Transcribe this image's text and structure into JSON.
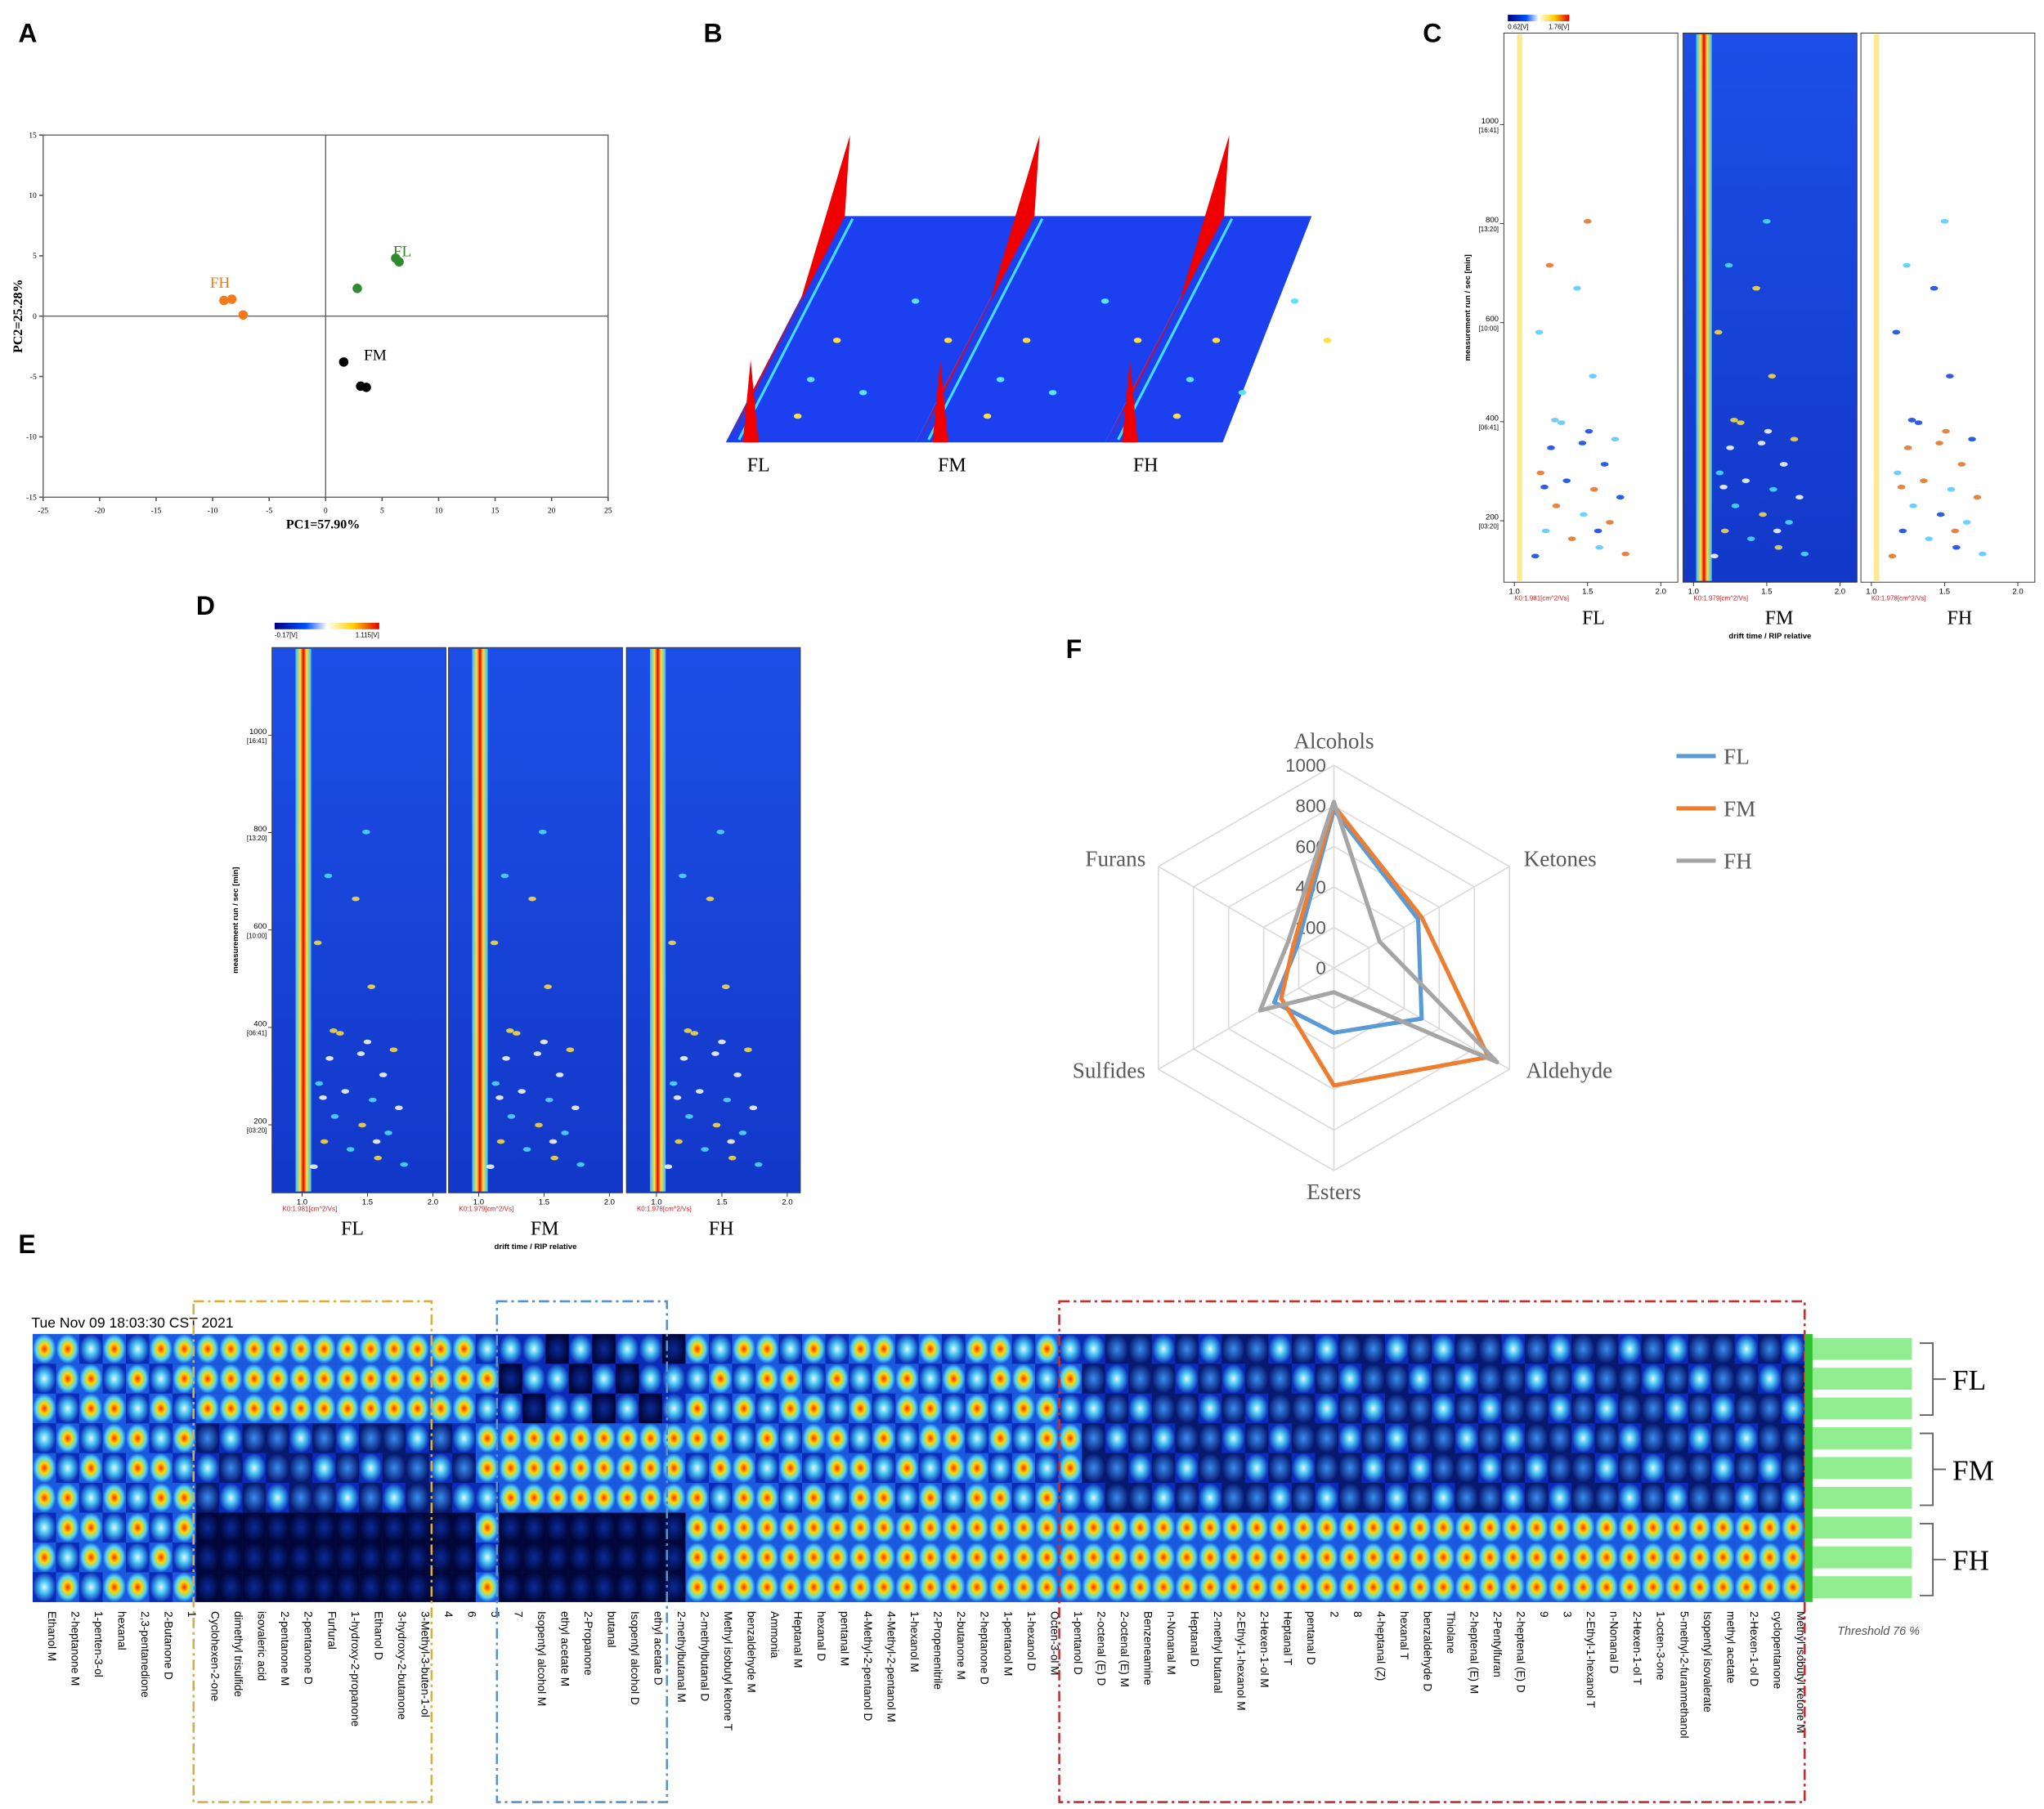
{
  "panel_labels": [
    "A",
    "B",
    "C",
    "D",
    "E",
    "F"
  ],
  "chart_data": [
    {
      "type": "scatter",
      "x_label": "PC1=57.90%",
      "y_label": "PC2=25.28%",
      "xlim": [
        -25,
        25
      ],
      "xticks": [
        -25,
        -20,
        -15,
        -10,
        -5,
        0,
        5,
        10,
        15,
        20,
        25
      ],
      "ylim": [
        -15,
        15
      ],
      "yticks": [
        -15,
        -10,
        -5,
        0,
        5,
        10,
        15
      ],
      "series": [
        {
          "name": "FH",
          "color": "#f07a1c",
          "x": [
            -9.0,
            -8.3,
            -7.3
          ],
          "values": [
            1.3,
            1.4,
            0.1
          ]
        },
        {
          "name": "FL",
          "color": "#2e8b2e",
          "x": [
            2.8,
            6.2,
            6.5
          ],
          "values": [
            2.3,
            4.8,
            4.5
          ]
        },
        {
          "name": "FM",
          "color": "#000000",
          "x": [
            1.6,
            3.1,
            3.6
          ],
          "values": [
            -3.8,
            -5.8,
            -5.9
          ]
        }
      ]
    },
    {
      "type": "radar",
      "categories": [
        "Alcohols",
        "Ketones",
        "Aldehyde",
        "Esters",
        "Sulfides",
        "Furans"
      ],
      "rlim": [
        0,
        1000
      ],
      "rticks": [
        0,
        200,
        400,
        600,
        800,
        1000
      ],
      "legend": "right",
      "series": [
        {
          "name": "FL",
          "color": "#5b9bd5",
          "values": [
            780,
            480,
            500,
            320,
            340,
            210
          ]
        },
        {
          "name": "FM",
          "color": "#ed7d31",
          "values": [
            800,
            500,
            880,
            580,
            300,
            230
          ]
        },
        {
          "name": "FH",
          "color": "#a5a5a5",
          "values": [
            820,
            260,
            930,
            120,
            420,
            260
          ]
        }
      ]
    }
  ],
  "panel_b": {
    "sample_labels": [
      "FL",
      "FM",
      "FH"
    ]
  },
  "panel_c": {
    "colorbar_labels": [
      "0.62[V]",
      "1.76[V]"
    ],
    "y_axis_label": "measurement run / sec [min]",
    "yticks": [
      200,
      400,
      600,
      800,
      1000
    ],
    "ytick_times": [
      "[03:20]",
      "[06:41]",
      "[10:00]",
      "[13:20]",
      "[16:41]"
    ],
    "xticks": [
      {
        "value": 1,
        "label": "1.0"
      },
      {
        "value": 1.5,
        "label": "1.5"
      },
      {
        "value": 2,
        "label": "2.0"
      }
    ],
    "x_axis_label": "drift time / RIP relative",
    "k0_labels": [
      "K0:1.981[cm^2/Vs]",
      "K0:1.979[cm^2/Vs]",
      "K0:1.978[cm^2/Vs]"
    ],
    "sample_labels": [
      "FL",
      "FM",
      "FH"
    ]
  },
  "panel_d": {
    "colorbar_labels": [
      "-0.17[V]",
      "1.115[V]"
    ],
    "y_axis_label": "measurement run / sec [min]",
    "yticks": [
      200,
      400,
      600,
      800,
      1000
    ],
    "ytick_times": [
      "[03:20]",
      "[06:41]",
      "[10:00]",
      "[13:20]",
      "[16:41]"
    ],
    "xticks": [
      {
        "value": 1,
        "label": "1.0"
      },
      {
        "value": 1.5,
        "label": "1.5"
      },
      {
        "value": 2,
        "label": "2.0"
      }
    ],
    "x_axis_label": "drift time / RIP relative",
    "k0_labels": [
      "K0:1.981[cm^2/Vs]",
      "K0:1.979[cm^2/Vs]",
      "K0:1.978[cm^2/Vs]"
    ],
    "sample_labels": [
      "FL",
      "FM",
      "FH"
    ]
  },
  "panel_e": {
    "timestamp": "Tue Nov 09 18:03:30 CST 2021",
    "group_labels": [
      "FL",
      "FM",
      "FH"
    ],
    "threshold_label": "Threshold 76 %",
    "compounds": [
      "Ethanol M",
      "2-heptanone M",
      "1-penten-3-ol",
      "hexanal",
      "2,3-pentanedione",
      "2-Butanone D",
      "1",
      "Cyclohexen-2-one",
      "dimethyl trisulfide",
      "isovaleric acid",
      "2-pentanone M",
      "2-pentanone D",
      "Furfural",
      "1-hydroxy-2-propanone",
      "Ethanol D",
      "3-hydroxy-2-butanone",
      "3-Methyl-3-buten-1-ol",
      "4",
      "6",
      "5",
      "7",
      "Isopentyl alcohol M",
      "ethyl acetate M",
      "2-Propanone",
      "butanal",
      "Isopentyl alcohol D",
      "ethyl acetate D",
      "2-methylbutanal M",
      "2-methylbutanal D",
      "Methyl isobutyl ketone T",
      "benzaldehyde M",
      "Ammonia",
      "Heptanal M",
      "hexanal D",
      "pentanal M",
      "4-Methyl-2-pentanol D",
      "4-Methyl-2-pentanol M",
      "1-hexanol M",
      "2-Propenenitrile",
      "2-butanone M",
      "2-heptanone D",
      "1-pentanol M",
      "1-hexanol D",
      "Octen-3-ol M",
      "1-pentanol D",
      "2-octenal (E) D",
      "2-octenal (E) M",
      "Benzeneamine",
      "n-Nonanal M",
      "Heptanal D",
      "2-methyl butanal",
      "2-Ethyl-1-hexanol M",
      "2-Hexen-1-ol M",
      "Heptanal T",
      "pentanal D",
      "2",
      "8",
      "4-heptanal (Z)",
      "hexanal T",
      "benzaldehyde D",
      "Thiolane",
      "2-heptenal (E) M",
      "2-Pentylfuran",
      "2-heptenal (E) D",
      "9",
      "3",
      "2-Ethyl-1-hexanol T",
      "n-Nonanal D",
      "2-Hexen-1-ol T",
      "1-octen-3-one",
      "5-methyl-2-furanmethanol",
      "Isopentyl isovalerate",
      "methyl acetate",
      "2-Hexen-1-ol D",
      "cyclopentanone",
      "Methyl isobutyl ketone M"
    ]
  }
}
